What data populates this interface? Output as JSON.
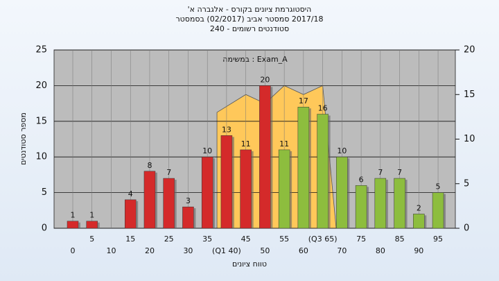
{
  "chart_data": {
    "type": "bar",
    "title": "היסטוגרמת ציונים בקורס - אלגברה א'",
    "subtitle": "2017/18 סמסטר אביב (02/2017) בסמסטר",
    "subtitle2": "סטודנטים רשומים - 240",
    "annotation": "Exam_A : במשימה",
    "y_label": "מספר סטודנטים",
    "x_label": "טווח ציונים",
    "categories": [
      "0",
      "5",
      "10",
      "15",
      "20",
      "25",
      "30",
      "35",
      "(Q1 40)",
      "45",
      "50",
      "55",
      "60",
      "(Q3 65)",
      "70",
      "75",
      "80",
      "85",
      "90",
      "95"
    ],
    "values": [
      1,
      1,
      null,
      4,
      8,
      7,
      3,
      10,
      13,
      11,
      20,
      11,
      17,
      16,
      10,
      6,
      7,
      7,
      2,
      5
    ],
    "colors": [
      "#d42a2a",
      "#d42a2a",
      "#d42a2a",
      "#d42a2a",
      "#d42a2a",
      "#d42a2a",
      "#d42a2a",
      "#d42a2a",
      "#d42a2a",
      "#d42a2a",
      "#d42a2a",
      "#8dbd3e",
      "#8dbd3e",
      "#8dbd3e",
      "#8dbd3e",
      "#8dbd3e",
      "#8dbd3e",
      "#8dbd3e",
      "#8dbd3e",
      "#8dbd3e"
    ],
    "area": {
      "color": "#ffc85a",
      "axis": "y2",
      "values": [
        null,
        null,
        null,
        null,
        null,
        null,
        null,
        null,
        13,
        15,
        14,
        16,
        15,
        16,
        null,
        null,
        null,
        null,
        null,
        null
      ]
    },
    "ylim": [
      0,
      25
    ],
    "yticks": [
      0,
      5,
      10,
      15,
      20,
      25
    ],
    "y2lim": [
      0,
      20
    ],
    "y2ticks": [
      0,
      5,
      10,
      15,
      20
    ],
    "grid": true
  }
}
